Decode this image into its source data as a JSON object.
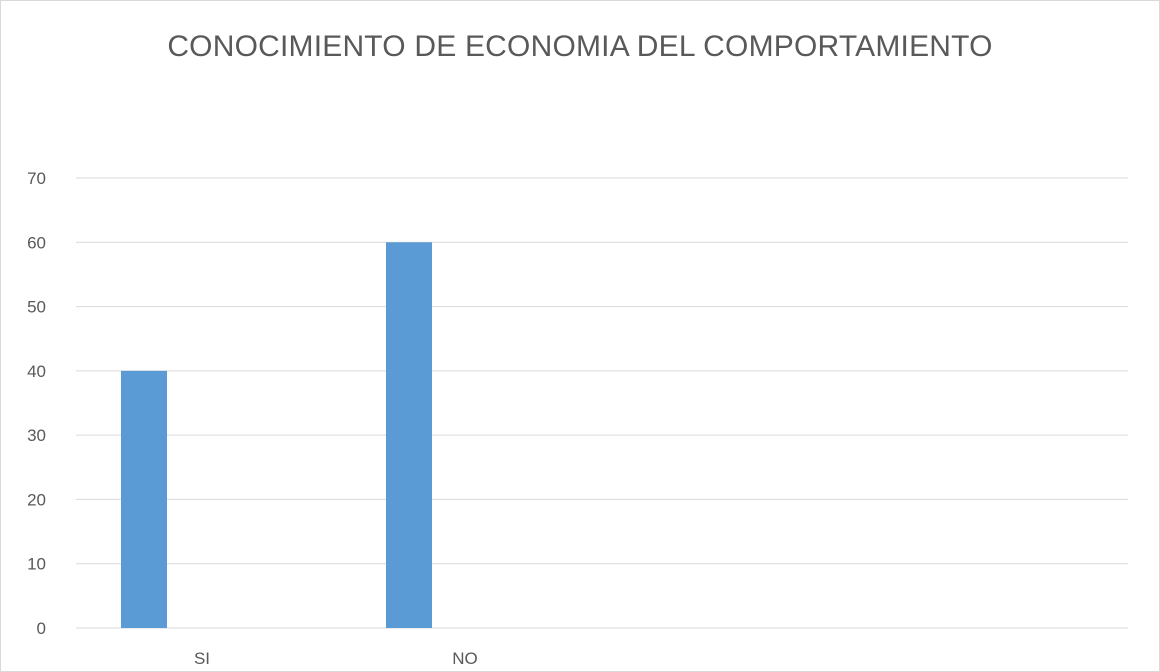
{
  "chart_data": {
    "type": "bar",
    "title": "CONOCIMIENTO DE ECONOMIA DEL COMPORTAMIENTO",
    "categories": [
      "SI",
      "NO"
    ],
    "values": [
      40,
      60
    ],
    "ylim": [
      0,
      70
    ],
    "yticks": [
      0,
      10,
      20,
      30,
      40,
      50,
      60,
      70
    ],
    "xlabel": "",
    "ylabel": "",
    "grid": true,
    "legend": "none",
    "bar_color": "#5b9bd5",
    "grid_color": "#d9d9d9",
    "text_color": "#595959"
  }
}
